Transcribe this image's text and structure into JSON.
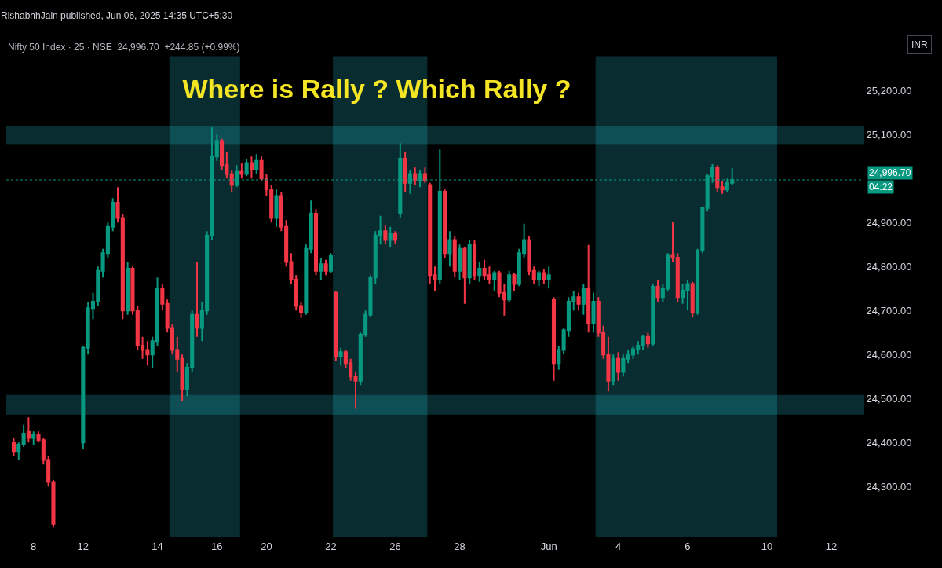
{
  "chart_data": {
    "type": "candlestick",
    "title": "Where is Rally ? Which Rally ?",
    "subtitle": "Nifty 50 Index · 25 · NSE  24,996.70  +244.85 (+0.99%)",
    "annotations": [
      "RishabhhJain published, Jun 06, 2025 14:35 UTC+5:30",
      "INR",
      "04:22"
    ],
    "categories": [
      null,
      null,
      null,
      null,
      "8",
      null,
      null,
      null,
      null,
      null,
      null,
      null,
      null,
      null,
      "12",
      null,
      null,
      null,
      null,
      null,
      null,
      null,
      null,
      null,
      null,
      null,
      null,
      null,
      null,
      "14",
      null,
      null,
      null,
      null,
      null,
      null,
      null,
      null,
      null,
      null,
      null,
      "16",
      null,
      null,
      null,
      null,
      null,
      null,
      null,
      null,
      null,
      "20",
      null,
      null,
      null,
      null,
      null,
      null,
      null,
      null,
      null,
      null,
      null,
      null,
      "22",
      null,
      null,
      null,
      null,
      null,
      null,
      null,
      null,
      null,
      null,
      null,
      null,
      "26",
      null,
      null,
      null,
      null,
      null,
      null,
      null,
      null,
      null,
      null,
      null,
      null,
      "28",
      null,
      null,
      null,
      null,
      null,
      null,
      null,
      null,
      null,
      null,
      null,
      null,
      null,
      null,
      null,
      null,
      null,
      "Jun",
      null,
      null,
      null,
      null,
      null,
      null,
      null,
      null,
      null,
      null,
      null,
      null,
      null,
      "4",
      null,
      null,
      null,
      null,
      null,
      null,
      null,
      null,
      null,
      null,
      null,
      null,
      null,
      "6",
      null,
      null,
      null,
      null,
      null,
      null,
      null,
      null,
      null,
      null,
      null,
      null,
      null,
      null,
      null,
      "10",
      null,
      null,
      null,
      null,
      null,
      null,
      null,
      null,
      null,
      null,
      null,
      null,
      "12",
      null,
      null,
      null,
      null,
      null,
      null
    ],
    "ohlc": [
      [
        24400,
        24410,
        24370,
        24380
      ],
      [
        24380,
        24400,
        24360,
        24395
      ],
      [
        24395,
        24440,
        24390,
        24420
      ],
      [
        24425,
        24457,
        24400,
        24410
      ],
      [
        24410,
        24425,
        24395,
        24418
      ],
      [
        24418,
        24425,
        24400,
        24405
      ],
      [
        24405,
        24410,
        24350,
        24360
      ],
      [
        24360,
        24370,
        24300,
        24310
      ],
      [
        24310,
        24315,
        24207,
        24215
      ],
      null,
      null,
      null,
      null,
      null,
      [
        24400,
        24620,
        24385,
        24615
      ],
      [
        24615,
        24720,
        24600,
        24705
      ],
      [
        24705,
        24740,
        24680,
        24720
      ],
      [
        24720,
        24800,
        24710,
        24790
      ],
      [
        24790,
        24840,
        24775,
        24830
      ],
      [
        24830,
        24900,
        24820,
        24890
      ],
      [
        24890,
        24955,
        24880,
        24945
      ],
      [
        24945,
        24980,
        24900,
        24910
      ],
      [
        24910,
        24920,
        24680,
        24700
      ],
      [
        24700,
        24810,
        24690,
        24795
      ],
      [
        24795,
        24800,
        24690,
        24700
      ],
      [
        24700,
        24710,
        24610,
        24620
      ],
      [
        24620,
        24640,
        24590,
        24610
      ],
      [
        24610,
        24630,
        24575,
        24600
      ],
      [
        24600,
        24640,
        24570,
        24630
      ],
      [
        24630,
        24775,
        24620,
        24750
      ],
      [
        24750,
        24760,
        24700,
        24715
      ],
      [
        24715,
        24725,
        24650,
        24660
      ],
      [
        24660,
        24670,
        24600,
        24610
      ],
      [
        24610,
        24640,
        24560,
        24590
      ],
      [
        24590,
        24600,
        24495,
        24520
      ],
      [
        24520,
        24580,
        24505,
        24570
      ],
      [
        24570,
        24700,
        24560,
        24690
      ],
      [
        24690,
        24810,
        24640,
        24660
      ],
      [
        24660,
        24720,
        24630,
        24700
      ],
      [
        24700,
        24880,
        24690,
        24870
      ],
      [
        24870,
        25116,
        24860,
        25050
      ],
      [
        25050,
        25100,
        25040,
        25085
      ],
      [
        25085,
        25090,
        25020,
        25030
      ],
      [
        25030,
        25060,
        25000,
        25010
      ],
      [
        25010,
        25020,
        24970,
        24985
      ],
      [
        24985,
        25030,
        24980,
        25015
      ],
      [
        25015,
        25035,
        25000,
        25010
      ],
      [
        25010,
        25045,
        25005,
        25035
      ],
      [
        25035,
        25050,
        25000,
        25020
      ],
      [
        25020,
        25055,
        25010,
        25040
      ],
      [
        25040,
        25050,
        24995,
        25000
      ],
      [
        25000,
        25010,
        24960,
        24975
      ],
      [
        24975,
        24985,
        24900,
        24910
      ],
      [
        24910,
        24975,
        24890,
        24960
      ],
      [
        24960,
        24970,
        24880,
        24890
      ],
      [
        24890,
        24905,
        24800,
        24810
      ],
      [
        24810,
        24830,
        24760,
        24770
      ],
      [
        24770,
        24780,
        24700,
        24710
      ],
      [
        24710,
        24720,
        24683,
        24695
      ],
      [
        24695,
        24850,
        24690,
        24840
      ],
      [
        24840,
        24950,
        24830,
        24920
      ],
      [
        24920,
        24930,
        24780,
        24790
      ],
      [
        24790,
        24820,
        24770,
        24805
      ],
      [
        24805,
        24815,
        24780,
        24790
      ],
      [
        24790,
        24830,
        24785,
        24825
      ],
      [
        24740,
        24745,
        24585,
        24595
      ],
      [
        24595,
        24615,
        24575,
        24605
      ],
      [
        24605,
        24610,
        24570,
        24580
      ],
      [
        24580,
        24590,
        24540,
        24550
      ],
      [
        24550,
        24560,
        24478,
        24540
      ],
      [
        24540,
        24650,
        24530,
        24645
      ],
      [
        24645,
        24700,
        24640,
        24690
      ],
      [
        24690,
        24780,
        24685,
        24775
      ],
      [
        24775,
        24880,
        24760,
        24870
      ],
      [
        24870,
        24915,
        24850,
        24880
      ],
      [
        24880,
        24895,
        24850,
        24860
      ],
      [
        24860,
        24890,
        24845,
        24875
      ],
      [
        24875,
        24880,
        24850,
        24860
      ],
      [
        24920,
        25080,
        24910,
        25045
      ],
      [
        25045,
        25060,
        24970,
        24990
      ],
      [
        24990,
        25020,
        24965,
        25010
      ],
      [
        25010,
        25025,
        24985,
        24995
      ],
      [
        24995,
        25020,
        24980,
        25010
      ],
      [
        25010,
        25025,
        24990,
        24995
      ],
      [
        24985,
        24990,
        24760,
        24780
      ],
      [
        24780,
        24800,
        24745,
        24770
      ],
      [
        24770,
        25066,
        24760,
        24970
      ],
      [
        24970,
        24975,
        24820,
        24830
      ],
      [
        24830,
        24880,
        24800,
        24860
      ],
      [
        24860,
        24870,
        24775,
        24790
      ],
      [
        24790,
        24850,
        24770,
        24840
      ],
      [
        24840,
        24845,
        24715,
        24775
      ],
      [
        24775,
        24860,
        24760,
        24850
      ],
      [
        24850,
        24860,
        24770,
        24780
      ],
      [
        24780,
        24810,
        24765,
        24795
      ],
      [
        24795,
        24815,
        24770,
        24780
      ],
      [
        24780,
        24800,
        24760,
        24770
      ],
      [
        24770,
        24790,
        24745,
        24785
      ],
      [
        24785,
        24790,
        24730,
        24740
      ],
      [
        24740,
        24760,
        24688,
        24725
      ],
      [
        24725,
        24790,
        24720,
        24780
      ],
      [
        24780,
        24785,
        24745,
        24760
      ],
      [
        24760,
        24840,
        24755,
        24830
      ],
      [
        24830,
        24897,
        24820,
        24860
      ],
      [
        24860,
        24870,
        24780,
        24790
      ],
      [
        24790,
        24800,
        24760,
        24770
      ],
      [
        24770,
        24790,
        24755,
        24785
      ],
      [
        24785,
        24795,
        24760,
        24770
      ],
      [
        24770,
        24800,
        24750,
        24780
      ],
      [
        24725,
        24730,
        24540,
        24580
      ],
      [
        24580,
        24620,
        24565,
        24610
      ],
      [
        24610,
        24660,
        24600,
        24655
      ],
      [
        24655,
        24730,
        24640,
        24720
      ],
      [
        24720,
        24745,
        24700,
        24730
      ],
      [
        24730,
        24740,
        24700,
        24715
      ],
      [
        24715,
        24760,
        24690,
        24750
      ],
      [
        24750,
        24849,
        24650,
        24670
      ],
      [
        24670,
        24740,
        24650,
        24720
      ],
      [
        24720,
        24730,
        24640,
        24650
      ],
      [
        24650,
        24665,
        24590,
        24600
      ],
      [
        24600,
        24640,
        24516,
        24540
      ],
      [
        24540,
        24600,
        24530,
        24590
      ],
      [
        24590,
        24605,
        24540,
        24560
      ],
      [
        24560,
        24600,
        24550,
        24590
      ],
      [
        24590,
        24610,
        24580,
        24600
      ],
      [
        24600,
        24620,
        24590,
        24612
      ],
      [
        24612,
        24630,
        24600,
        24620
      ],
      [
        24620,
        24645,
        24610,
        24640
      ],
      [
        24640,
        24650,
        24615,
        24625
      ],
      [
        24625,
        24760,
        24620,
        24754
      ],
      [
        24754,
        24770,
        24720,
        24730
      ],
      [
        24730,
        24760,
        24720,
        24750
      ],
      [
        24750,
        24830,
        24745,
        24826
      ],
      [
        24826,
        24902,
        24810,
        24820
      ],
      [
        24820,
        24830,
        24720,
        24730
      ],
      [
        24730,
        24760,
        24715,
        24745
      ],
      [
        24745,
        24770,
        24700,
        24760
      ],
      [
        24760,
        24765,
        24685,
        24695
      ],
      [
        24695,
        24840,
        24690,
        24836
      ],
      [
        24836,
        24935,
        24830,
        24933
      ],
      [
        24933,
        25010,
        24925,
        25005
      ],
      [
        25005,
        25033,
        24990,
        25025
      ],
      [
        25025,
        25030,
        24970,
        24980
      ],
      [
        24980,
        24995,
        24965,
        24975
      ],
      [
        24975,
        25000,
        24970,
        24990
      ],
      [
        24990,
        25023,
        24985,
        24996.7
      ],
      null,
      null,
      null,
      null,
      null,
      null,
      null,
      null,
      null,
      null,
      null,
      null,
      null,
      null,
      null,
      null,
      null,
      null,
      null,
      null,
      null,
      null,
      null,
      null,
      null,
      null
    ],
    "ylim": [
      24186,
      25277
    ],
    "yticks": [
      {
        "value": 24300,
        "label": "24,300.00"
      },
      {
        "value": 24400,
        "label": "24,400.00"
      },
      {
        "value": 24500,
        "label": "24,500.00"
      },
      {
        "value": 24600,
        "label": "24,600.00"
      },
      {
        "value": 24700,
        "label": "24,700.00"
      },
      {
        "value": 24800,
        "label": "24,800.00"
      },
      {
        "value": 24900,
        "label": "24,900.00"
      },
      {
        "value": 25100,
        "label": "25,100.00"
      },
      {
        "value": 25200,
        "label": "25,200.00"
      }
    ],
    "ref_lines": [
      {
        "axis": "y",
        "value": 24996.7,
        "label": "24,996.70",
        "color": "#089981",
        "line_style": "dotted"
      }
    ],
    "bands": [
      {
        "axis": "y",
        "from": 25079,
        "to": 25118,
        "color": "#26c6da"
      },
      {
        "axis": "y",
        "from": 24464,
        "to": 24507,
        "color": "#26c6da"
      }
    ]
  }
}
